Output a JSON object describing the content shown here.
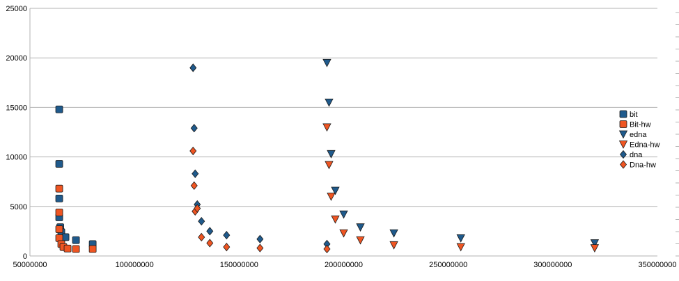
{
  "chart_data": {
    "type": "scatter",
    "xlim": [
      50000000,
      350000000
    ],
    "ylim": [
      0,
      25000
    ],
    "x_ticks": [
      50000000,
      100000000,
      150000000,
      200000000,
      250000000,
      300000000,
      350000000
    ],
    "x_tick_labels": [
      "50000000",
      "100000000",
      "150000000",
      "200000000",
      "250000000",
      "300000000",
      "350000000"
    ],
    "y_ticks": [
      0,
      5000,
      10000,
      15000,
      20000,
      25000
    ],
    "y_tick_labels": [
      "0",
      "5000",
      "10000",
      "15000",
      "20000",
      "25000"
    ],
    "grid": "horizontal",
    "legend_position": "right",
    "series": [
      {
        "name": "bit",
        "marker": "square",
        "color": "#1f5a8c",
        "points": [
          [
            64000000,
            14800
          ],
          [
            64000000,
            9300
          ],
          [
            64000000,
            5800
          ],
          [
            64000000,
            3900
          ],
          [
            64500000,
            2900
          ],
          [
            65000000,
            2400
          ],
          [
            67000000,
            1900
          ],
          [
            72000000,
            1600
          ],
          [
            80000000,
            1200
          ]
        ]
      },
      {
        "name": "Bit-hw",
        "marker": "square",
        "color": "#ef5522",
        "points": [
          [
            64000000,
            6800
          ],
          [
            64000000,
            4400
          ],
          [
            64000000,
            2700
          ],
          [
            64000000,
            1800
          ],
          [
            65000000,
            1200
          ],
          [
            66000000,
            900
          ],
          [
            68000000,
            750
          ],
          [
            72000000,
            700
          ],
          [
            80000000,
            700
          ]
        ]
      },
      {
        "name": "edna",
        "marker": "triangle-down",
        "color": "#1f5a8c",
        "points": [
          [
            192000000,
            19500
          ],
          [
            193000000,
            15500
          ],
          [
            194000000,
            10300
          ],
          [
            196000000,
            6600
          ],
          [
            200000000,
            4200
          ],
          [
            208000000,
            2900
          ],
          [
            224000000,
            2300
          ],
          [
            256000000,
            1800
          ],
          [
            320000000,
            1300
          ]
        ]
      },
      {
        "name": "Edna-hw",
        "marker": "triangle-down",
        "color": "#ef5522",
        "points": [
          [
            192000000,
            13000
          ],
          [
            193000000,
            9200
          ],
          [
            194000000,
            6000
          ],
          [
            196000000,
            3700
          ],
          [
            200000000,
            2300
          ],
          [
            208000000,
            1600
          ],
          [
            224000000,
            1100
          ],
          [
            256000000,
            900
          ],
          [
            320000000,
            800
          ]
        ]
      },
      {
        "name": "dna",
        "marker": "diamond",
        "color": "#1f5a8c",
        "points": [
          [
            128000000,
            19000
          ],
          [
            128500000,
            12900
          ],
          [
            129000000,
            8300
          ],
          [
            130000000,
            5200
          ],
          [
            132000000,
            3500
          ],
          [
            136000000,
            2500
          ],
          [
            144000000,
            2100
          ],
          [
            160000000,
            1700
          ],
          [
            192000000,
            1200
          ]
        ]
      },
      {
        "name": "Dna-hw",
        "marker": "diamond",
        "color": "#ef5522",
        "points": [
          [
            128000000,
            10600
          ],
          [
            128500000,
            7100
          ],
          [
            129000000,
            4500
          ],
          [
            130000000,
            4800
          ],
          [
            132000000,
            1900
          ],
          [
            136000000,
            1300
          ],
          [
            144000000,
            900
          ],
          [
            160000000,
            800
          ],
          [
            192000000,
            700
          ]
        ]
      }
    ]
  }
}
